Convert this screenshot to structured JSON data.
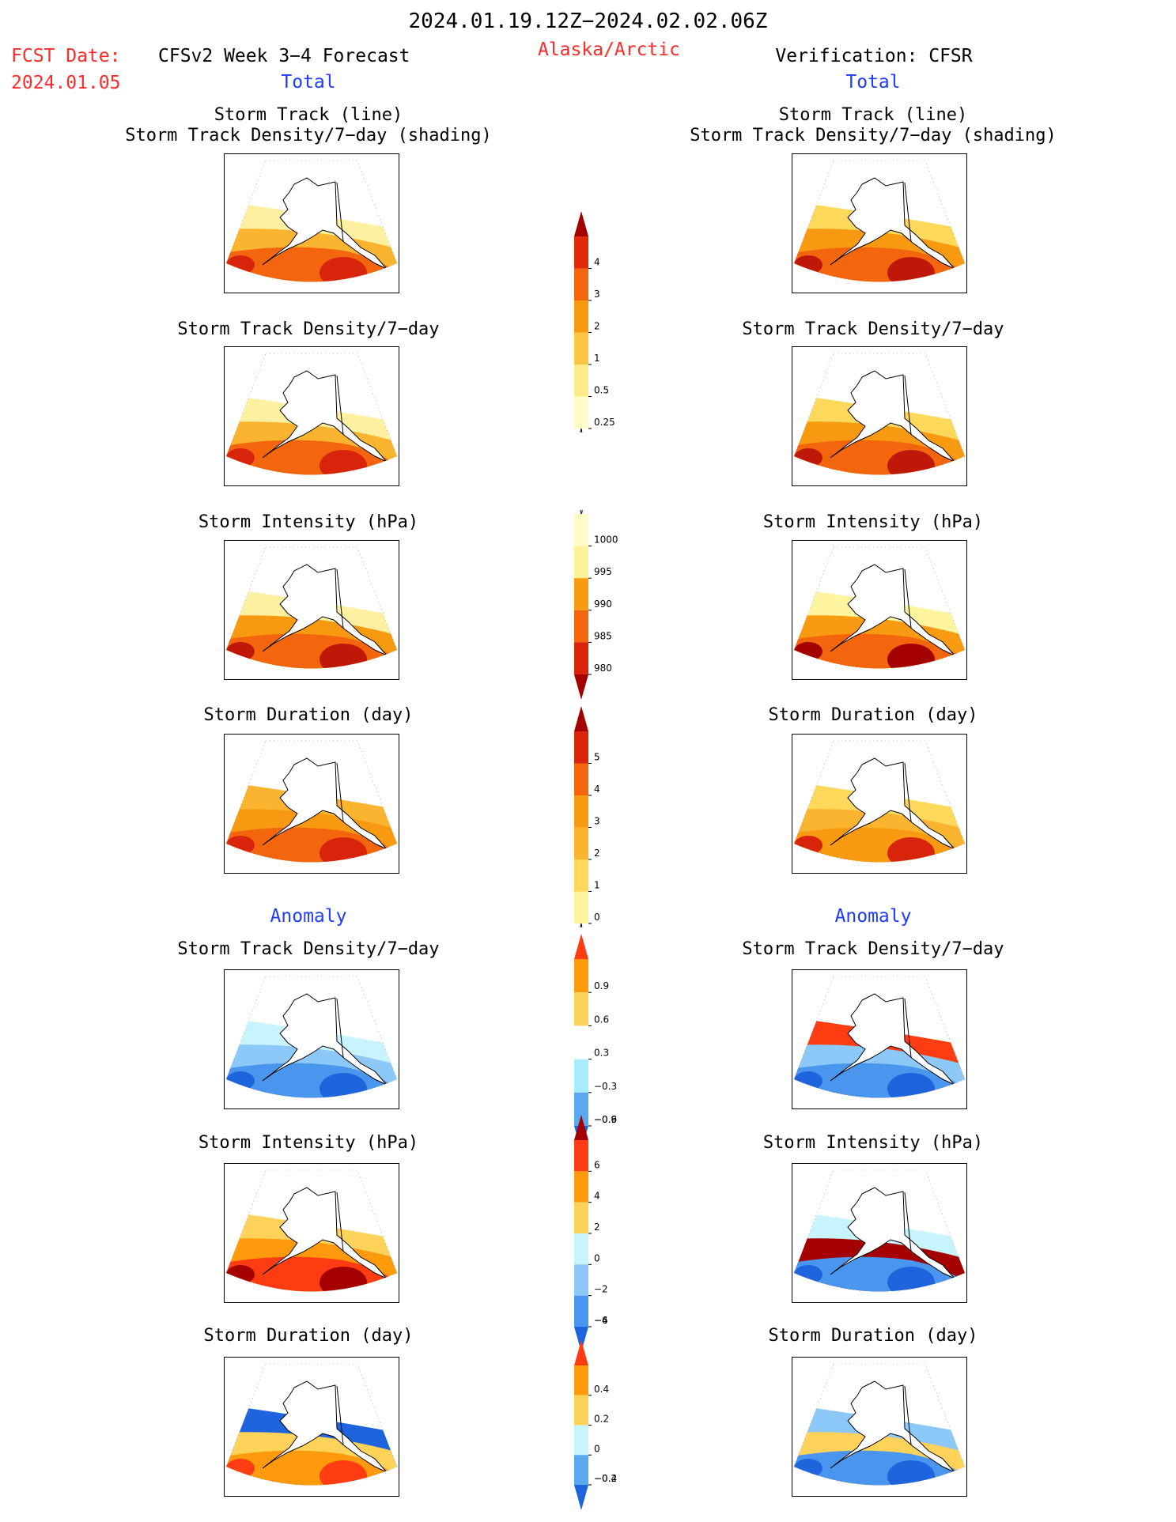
{
  "header": {
    "period": "2024.01.19.12Z−2024.02.02.06Z",
    "fcst_label": "FCST Date:",
    "fcst_date": "2024.01.05",
    "forecast_title": "CFSv2 Week 3−4 Forecast",
    "region": "Alaska/Arctic",
    "verification": "Verification: CFSR"
  },
  "sections": {
    "total": "Total",
    "anomaly": "Anomaly"
  },
  "panel_titles": {
    "storm_track_line": "Storm Track (line)",
    "storm_track_density_shading": "Storm Track Density/7−day (shading)",
    "storm_track_density": "Storm Track Density/7−day",
    "storm_intensity": "Storm Intensity (hPa)",
    "storm_duration": "Storm Duration (day)"
  },
  "colorbars": {
    "density_total": {
      "labels": [
        "4",
        "3",
        "2",
        "1",
        "0.5",
        "0.25"
      ],
      "colors": [
        "#a50000",
        "#e02a0a",
        "#f4660e",
        "#f79a12",
        "#fcc542",
        "#feec8a",
        "#fffcc8"
      ]
    },
    "intensity_total": {
      "labels": [
        "1000",
        "995",
        "990",
        "985",
        "980"
      ],
      "colors": [
        "#fffcc8",
        "#fdf19a",
        "#f99b12",
        "#f4660e",
        "#d8240a",
        "#a50000"
      ]
    },
    "duration_total": {
      "labels": [
        "5",
        "4",
        "3",
        "2",
        "1",
        "0"
      ],
      "colors": [
        "#a50000",
        "#d8240a",
        "#f4660e",
        "#f79a12",
        "#fbb430",
        "#fdd85a",
        "#fff4a0"
      ]
    },
    "density_anom": {
      "labels": [
        "0.9",
        "0.6",
        "0.3",
        "−0.3",
        "−0.6",
        "−0.9"
      ],
      "colors": [
        "#ff3c12",
        "#ff9a0c",
        "#ffd35a",
        "#ffffff",
        "#a8ecff",
        "#5aa8f0",
        "#1e64dc"
      ]
    },
    "intensity_anom": {
      "labels": [
        "6",
        "4",
        "2",
        "0",
        "−2",
        "−4",
        "−6"
      ],
      "colors": [
        "#a50000",
        "#ff3c12",
        "#ff9a0c",
        "#ffd35a",
        "#c8f4ff",
        "#8cc8f8",
        "#4a96ee",
        "#1e64dc"
      ]
    },
    "duration_anom": {
      "labels": [
        "0.4",
        "0.2",
        "0",
        "−0.2",
        "−0.4"
      ],
      "colors": [
        "#ff3c12",
        "#ff9a0c",
        "#ffd35a",
        "#c8f4ff",
        "#5aa8f0",
        "#1e64dc"
      ]
    }
  },
  "maps": [
    {
      "id": "fcst-track",
      "fill": [
        "#fdf0a0",
        "#fbb430",
        "#f4660e",
        "#d8240a"
      ]
    },
    {
      "id": "cfsr-track",
      "fill": [
        "#fdd85a",
        "#f79a12",
        "#f4660e",
        "#c01808"
      ]
    },
    {
      "id": "fcst-density",
      "fill": [
        "#fdf0a0",
        "#fbb430",
        "#f4660e",
        "#d8240a"
      ]
    },
    {
      "id": "cfsr-density",
      "fill": [
        "#fdd85a",
        "#f79a12",
        "#f4660e",
        "#c01808"
      ]
    },
    {
      "id": "fcst-intensity",
      "fill": [
        "#fdf0a0",
        "#f79a12",
        "#f4660e",
        "#c01808"
      ]
    },
    {
      "id": "cfsr-intensity",
      "fill": [
        "#fff4a0",
        "#f99b12",
        "#f4660e",
        "#a50000"
      ]
    },
    {
      "id": "fcst-duration",
      "fill": [
        "#fbb430",
        "#f79a12",
        "#f4660e",
        "#d8240a"
      ]
    },
    {
      "id": "cfsr-duration",
      "fill": [
        "#fdd85a",
        "#fbb430",
        "#f99b12",
        "#d8240a"
      ]
    },
    {
      "id": "fcst-density-anom",
      "fill": [
        "#c8f4ff",
        "#8cc8f8",
        "#4a96ee",
        "#1e64dc"
      ]
    },
    {
      "id": "cfsr-density-anom",
      "fill": [
        "#ff3c12",
        "#8cc8f8",
        "#4a96ee",
        "#1e64dc"
      ]
    },
    {
      "id": "fcst-intensity-anom",
      "fill": [
        "#ffd35a",
        "#ff9a0c",
        "#ff3c12",
        "#a50000"
      ]
    },
    {
      "id": "cfsr-intensity-anom",
      "fill": [
        "#c8f4ff",
        "#a50000",
        "#4a96ee",
        "#1e64dc"
      ]
    },
    {
      "id": "fcst-duration-anom",
      "fill": [
        "#1e64dc",
        "#ffd35a",
        "#ff9a0c",
        "#ff3c12"
      ]
    },
    {
      "id": "cfsr-duration-anom",
      "fill": [
        "#8cc8f8",
        "#ffd35a",
        "#4a96ee",
        "#1e64dc"
      ]
    }
  ]
}
